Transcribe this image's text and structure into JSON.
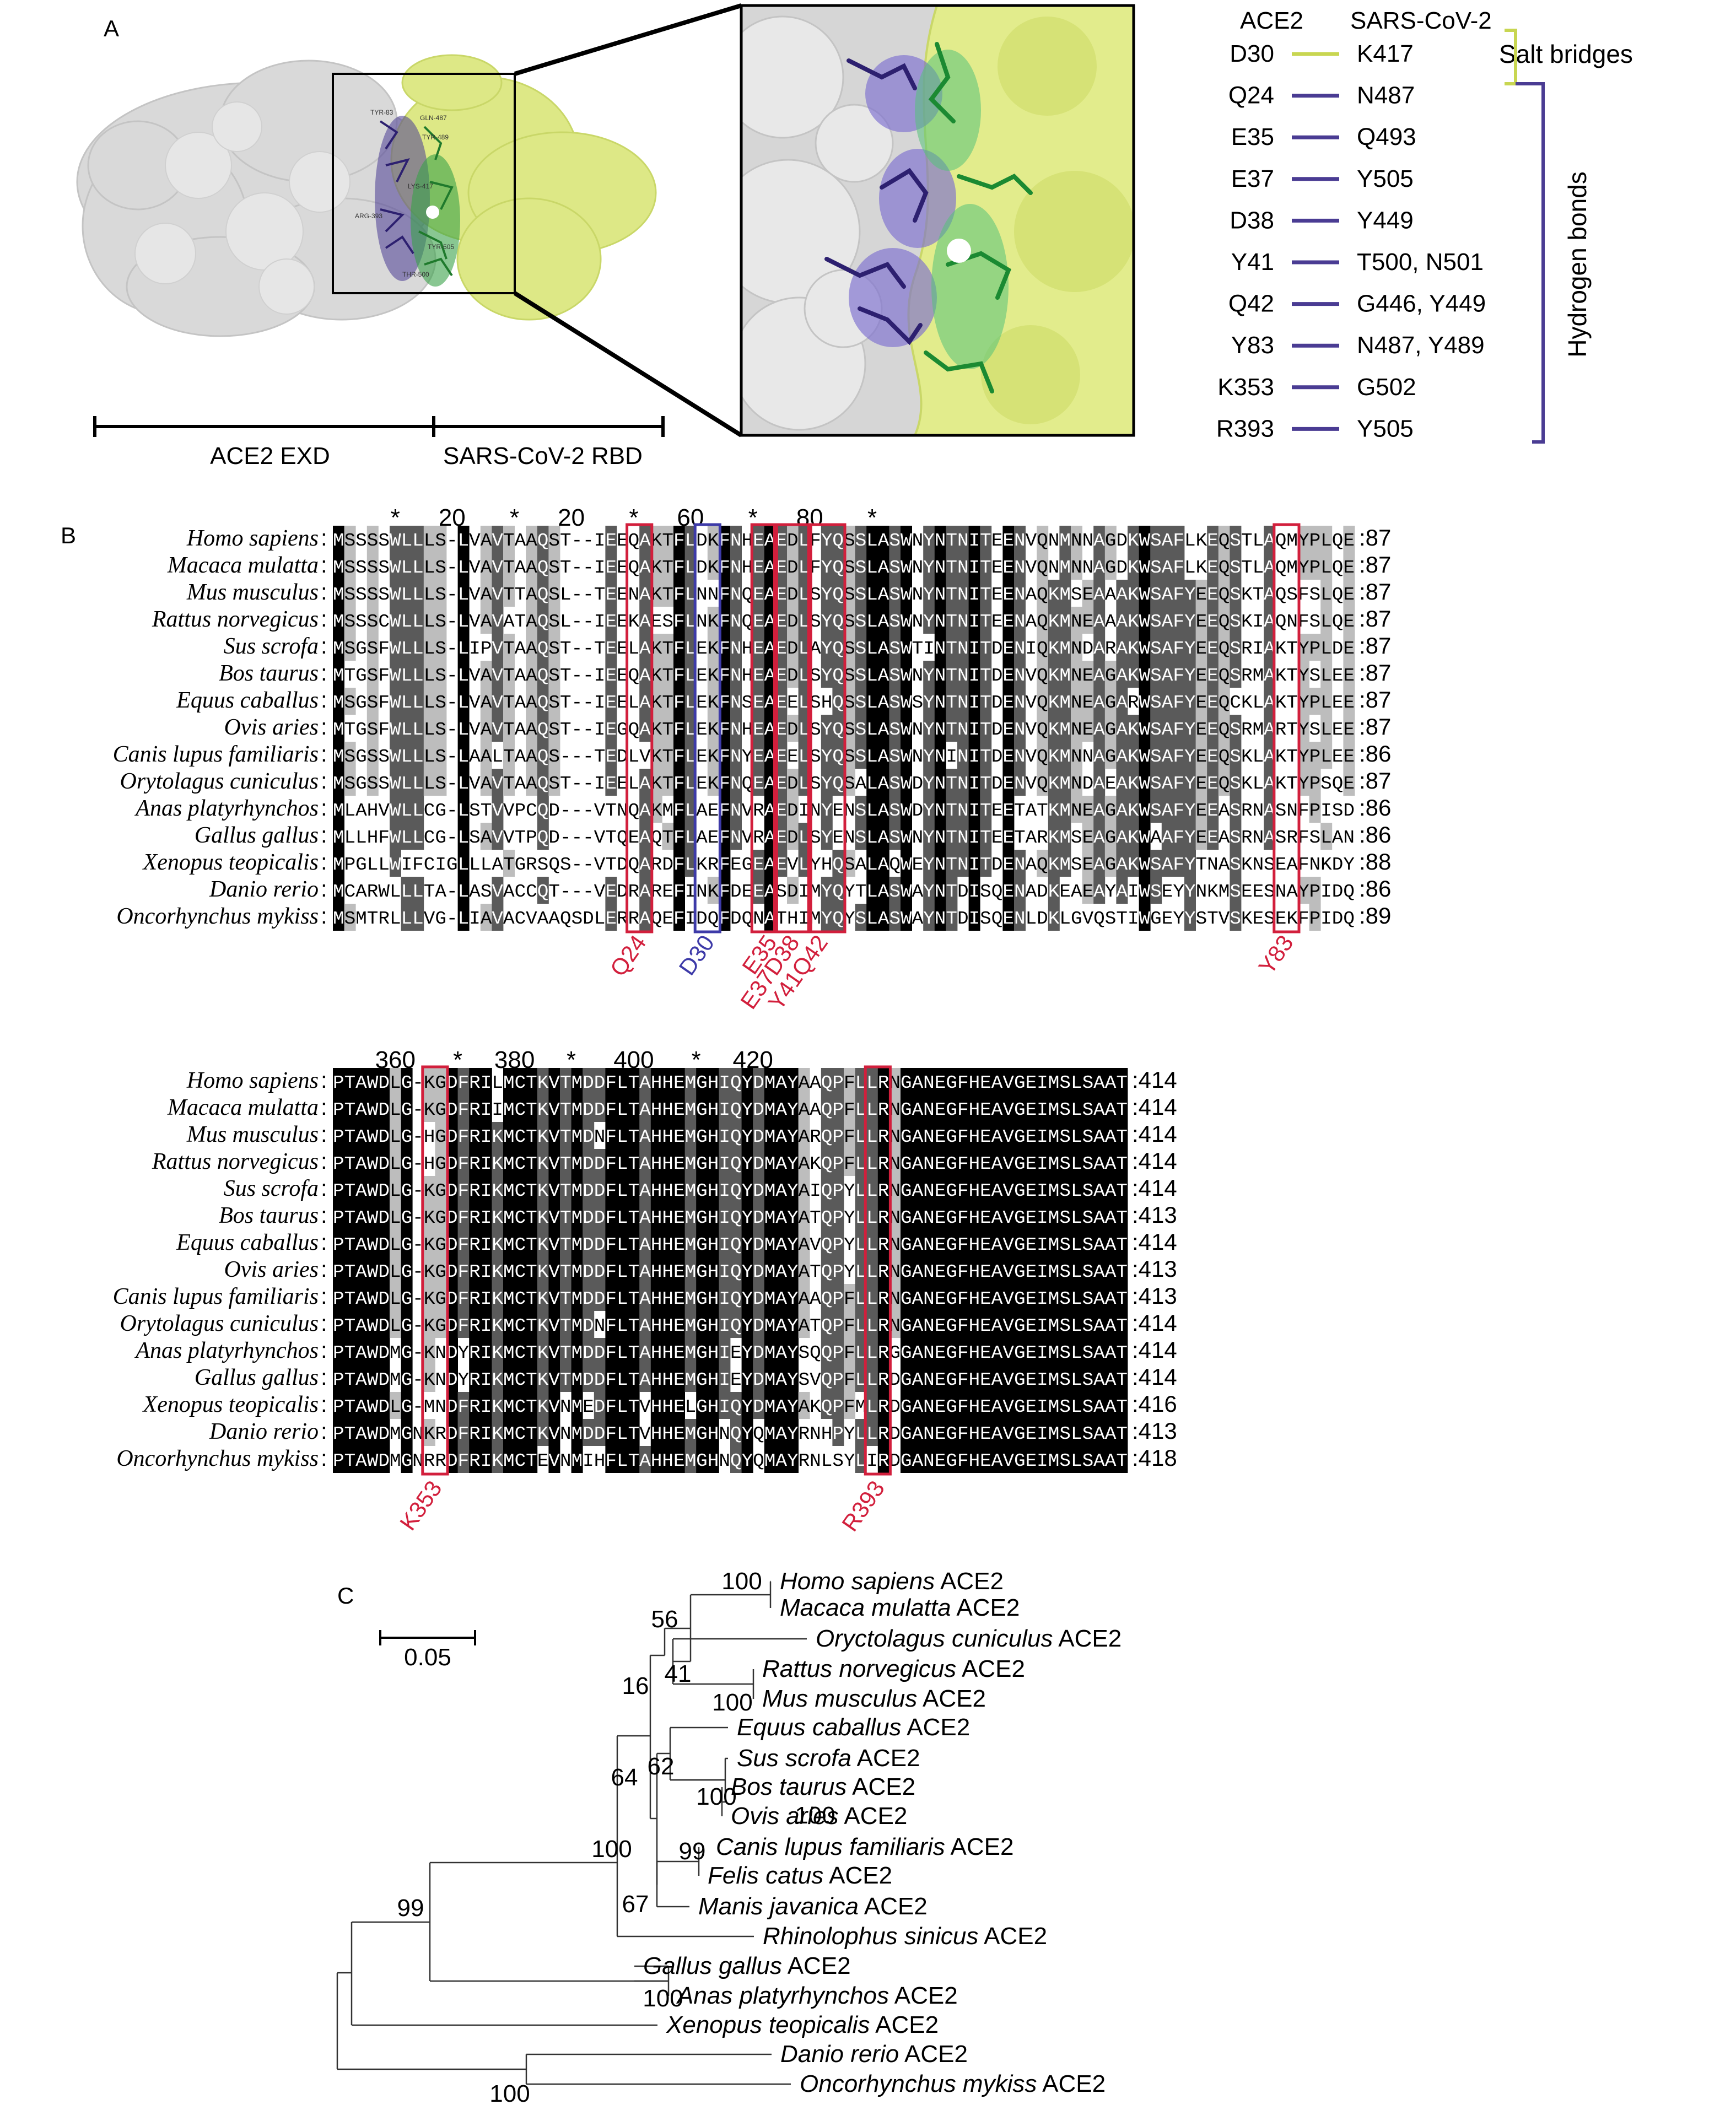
{
  "panels": {
    "a": "A",
    "b": "B",
    "c": "C"
  },
  "panel_a": {
    "scale_left": "ACE2 EXD",
    "scale_right": "SARS-CoV-2 RBD",
    "col_left": "ACE2",
    "col_right": "SARS-CoV-2",
    "salt_label": "Salt bridges",
    "hbond_label": "Hydrogen bonds",
    "salt_color": "#c8d651",
    "hbond_color": "#4a3c93",
    "pairs": [
      {
        "ace2": "D30",
        "cov": "K417",
        "type": "salt"
      },
      {
        "ace2": "Q24",
        "cov": "N487",
        "type": "hbond"
      },
      {
        "ace2": "E35",
        "cov": "Q493",
        "type": "hbond"
      },
      {
        "ace2": "E37",
        "cov": "Y505",
        "type": "hbond"
      },
      {
        "ace2": "D38",
        "cov": "Y449",
        "type": "hbond"
      },
      {
        "ace2": "Y41",
        "cov": "T500, N501",
        "type": "hbond"
      },
      {
        "ace2": "Q42",
        "cov": "G446, Y449",
        "type": "hbond"
      },
      {
        "ace2": "Y83",
        "cov": "N487, Y489",
        "type": "hbond"
      },
      {
        "ace2": "K353",
        "cov": "G502",
        "type": "hbond"
      },
      {
        "ace2": "R393",
        "cov": "Y505",
        "type": "hbond"
      }
    ]
  },
  "alignment1": {
    "ruler": [
      "*",
      "20",
      "*",
      "20",
      "*",
      "60",
      "*",
      "80",
      "*"
    ],
    "rows": [
      {
        "species": "Homo sapiens",
        "seq": "MSSSSWLLLS-LVAVTAAQST--IEEQAKTFLDKFNHEAEDLFYQSSLASWNYNTNITEENVQNMNNAGDKWSAFLKEQSTLAQMYPLQE",
        "end": ":87"
      },
      {
        "species": "Macaca mulatta",
        "seq": "MSSSSWLLLS-LVAVTAAQST--IEEQAKTFLDKFNHEAEDLFYQSSLASWNYNTNITEENVQNMNNAGDKWSAFLKEQSTLAQMYPLQE",
        "end": ":87"
      },
      {
        "species": "Mus musculus",
        "seq": "MSSSSWLLLS-LVAVTTAQSL--TEENAKTFLNNFNQEAEDLSYQSSLASWNYNTNITEENAQKMSEAAAKWSAFYEEQSKTAQSFSLQE",
        "end": ":87"
      },
      {
        "species": "Rattus norvegicus",
        "seq": "MSSSCWLLLS-LVAVATAQSL--IEEKAESFLNKFNQEAEDLSYQSSLASWNYNTNITEENAQKMNEAAAKWSAFYEEQSKIAQNFSLQE",
        "end": ":87"
      },
      {
        "species": "Sus scrofa",
        "seq": "MSGSFWLLLS-LIPVTAAQST--TEELAKTFLEKFNHEAEDLAYQSSLASWTINTNITDENIQKMNDARAKWSAFYEEQSRIAKTYPLDE",
        "end": ":87"
      },
      {
        "species": "Bos taurus",
        "seq": "MTGSFWLLLS-LVAVTAAQST--IEEQAKTFLEKFNHEAEDLSYQSSLASWNYNTNITDENVQKMNEAGAKWSAFYEEQSRMAKTYSLEE",
        "end": ":87"
      },
      {
        "species": "Equus caballus",
        "seq": "MSGSFWLLLS-LVAVTAAQST--IEELAKTFLEKFNSEAEELSHQSSLASWSYNTNITDENVQKMNEAGARWSAFYEEQCKLAKTYPLEE",
        "end": ":87"
      },
      {
        "species": "Ovis aries",
        "seq": "MTGSFWLLLS-LVAVTAAQST--IEGQAKTFLEKFNHEAEDLSYQSSLASWNYNTNITDENVQKMNEAGAKWSAFYEEQSRMARTYSLEE",
        "end": ":87"
      },
      {
        "species": "Canis lupus familiaris",
        "seq": "MSGSSWLLLS-LAALTAAQS---TEDLVKTFLEKFNYEAEELSYQSSLASWNYNINITDENVQKMNNAGAKWSAFYEEQSKLAKTYPLEE",
        "end": ":86"
      },
      {
        "species": "Orytolagus cuniculus",
        "seq": "MSGSSWLLLS-LVAVTAAQST--IEELAKTFLEKFNQEAEDLSYQSALASWDYNTNITDENVQKMNDAEAKWSAFYEEQSKLAKTYPSQE",
        "end": ":87"
      },
      {
        "species": "Anas platyrhynchos",
        "seq": "MLAHVWLLCG-LSTVVPCQD---VTNQAKMFLAEFNVRAEDINYENSLASWDYNTNITEETATKMNEAGAKWSAFYEEASRNASNFPISD",
        "end": ":86"
      },
      {
        "species": "Gallus gallus",
        "seq": "MLLHFWLLCG-LSAVVTPQD---VTQEAQTFLAEFNVRAEDLSYENSLASWNYNTNITEETARKMSEAGAKWAAFYEEASRNASRFSLAN",
        "end": ":86"
      },
      {
        "species": "Xenopus teopicalis",
        "seq": "MPGLLWIFCIGLLLATGRSQS--VTDQARDFLKRFEGEAEVLYHQSALAQWEYNTNITDENAQKMSEAGAKWSAFYTNASKNSEAFNKDY",
        "end": ":88"
      },
      {
        "species": "Danio rerio",
        "seq": "MCARWLLLTA-LASVACCQT---VEDRAREFINKFDEEASDIMYQYTLASWAYNTDISQENADKEAEAYAIWSEYYNKMSEESNAYPIDQ",
        "end": ":86"
      },
      {
        "species": "Oncorhynchus mykiss",
        "seq": "MSMTRLLLVG-LIAVACVAAQSDLERRAQEFIDQFDQNATHIMYQYSLASWAYNTDISQENLDKLGVQSTIWGEYYSTVSKESEKFPIDQ",
        "end": ":89"
      }
    ],
    "labels": [
      {
        "text": "Q24",
        "color": "red"
      },
      {
        "text": "D30",
        "color": "blue"
      },
      {
        "text": "E35",
        "color": "red"
      },
      {
        "text": "E37D38",
        "color": "red"
      },
      {
        "text": "Y41Q42",
        "color": "red"
      },
      {
        "text": "Y83",
        "color": "red"
      }
    ]
  },
  "alignment2": {
    "ruler": [
      "360",
      "*",
      "380",
      "*",
      "400",
      "*",
      "420"
    ],
    "rows": [
      {
        "species": "Homo sapiens",
        "seq": "PTAWDLG-KGDFRILMCTKVTMDDFLTAHHEMGHIQYDMAYAAQPFLLRNGANEGFHEAVGEIMSLSAAT",
        "end": ":414"
      },
      {
        "species": "Macaca mulatta",
        "seq": "PTAWDLG-KGDFRIIMCTKVTMDDFLTAHHEMGHIQYDMAYAAQPFLLRNGANEGFHEAVGEIMSLSAAT",
        "end": ":414"
      },
      {
        "species": "Mus musculus",
        "seq": "PTAWDLG-HGDFRIKMCTKVTMDNFLTAHHEMGHIQYDMAYARQPFLLRNGANEGFHEAVGEIMSLSAAT",
        "end": ":414"
      },
      {
        "species": "Rattus norvegicus",
        "seq": "PTAWDLG-HGDFRIKMCTKVTMDDFLTAHHEMGHIQYDMAYAKQPFLLRNGANEGFHEAVGEIMSLSAAT",
        "end": ":414"
      },
      {
        "species": "Sus scrofa",
        "seq": "PTAWDLG-KGDFRIKMCTKVTMDDFLTAHHEMGHIQYDMAYAIQPYLLRNGANEGFHEAVGEIMSLSAAT",
        "end": ":414"
      },
      {
        "species": "Bos taurus",
        "seq": "PTAWDLG-KGDFRIKMCTKVTMDDFLTAHHEMGHIQYDMAYATQPYLLRNGANEGFHEAVGEIMSLSAAT",
        "end": ":413"
      },
      {
        "species": "Equus caballus",
        "seq": "PTAWDLG-KGDFRIKMCTKVTMDDFLTAHHEMGHIQYDMAYAVQPYLLRNGANEGFHEAVGEIMSLSAAT",
        "end": ":414"
      },
      {
        "species": "Ovis aries",
        "seq": "PTAWDLG-KGDFRIKMCTKVTMDDFLTAHHEMGHIQYDMAYATQPYLLRNGANEGFHEAVGEIMSLSAAT",
        "end": ":413"
      },
      {
        "species": "Canis lupus familiaris",
        "seq": "PTAWDLG-KGDFRIKMCTKVTMDDFLTAHHEMGHIQYDMAYAAQPFLLRNGANEGFHEAVGEIMSLSAAT",
        "end": ":413"
      },
      {
        "species": "Orytolagus cuniculus",
        "seq": "PTAWDLG-KGDFRIKMCTKVTMDNFLTAHHEMGHIQYDMAYATQPFLLRNGANEGFHEAVGEIMSLSAAT",
        "end": ":414"
      },
      {
        "species": "Anas platyrhynchos",
        "seq": "PTAWDMG-KNDYRIKMCTKVTMDDFLTAHHEMGHIEYDMAYSQQPFLLRGGANEGFHEAVGEIMSLSAAT",
        "end": ":414"
      },
      {
        "species": "Gallus gallus",
        "seq": "PTAWDMG-KNDYRIKMCTKVTMDDFLTAHHEMGHIEYDMAYSVQPFLLRDGANEGFHEAVGEIMSLSAAT",
        "end": ":414"
      },
      {
        "species": "Xenopus teopicalis",
        "seq": "PTAWDLG-MNDFRIKMCTKVNMEDFLTVHHELGHIQYDMAYAKQPFMLRDGANEGFHEAVGEIMSLSAAT",
        "end": ":416"
      },
      {
        "species": "Danio rerio",
        "seq": "PTAWDMGNKRDFRIKMCTKVNMDDFLTVHHEMGHNQYQMAYRNHPYLLRDGANEGFHEAVGEIMSLSAAT",
        "end": ":413"
      },
      {
        "species": "Oncorhynchus mykiss",
        "seq": "PTAWDMGNRRDFRIKMCTEVNMIHFLTAHHEMGHNQYQMAYRNLSYLIRDGANEGFHEAVGEIMSLSAAT",
        "end": ":418"
      }
    ],
    "labels": [
      {
        "text": "K353",
        "color": "red"
      },
      {
        "text": "R393",
        "color": "red"
      }
    ]
  },
  "tree": {
    "scale": "0.05",
    "leaves": [
      {
        "italic": "Homo sapiens",
        "suffix": " ACE2"
      },
      {
        "italic": "Macaca mulatta",
        "suffix": " ACE2"
      },
      {
        "italic": "Oryctolagus cuniculus",
        "suffix": " ACE2"
      },
      {
        "italic": "Rattus norvegicus",
        "suffix": " ACE2"
      },
      {
        "italic": "Mus musculus",
        "suffix": " ACE2"
      },
      {
        "italic": "Equus caballus",
        "suffix": " ACE2"
      },
      {
        "italic": "Sus scrofa",
        "suffix": " ACE2"
      },
      {
        "italic": "Bos taurus",
        "suffix": " ACE2"
      },
      {
        "italic": "Ovis aries",
        "suffix": " ACE2"
      },
      {
        "italic": "Canis lupus familiaris",
        "suffix": " ACE2"
      },
      {
        "italic": "Felis catus",
        "suffix": " ACE2"
      },
      {
        "italic": "Manis javanica",
        "suffix": " ACE2"
      },
      {
        "italic": "Rhinolophus sinicus",
        "suffix": " ACE2"
      },
      {
        "italic": "Gallus gallus",
        "suffix": " ACE2"
      },
      {
        "italic": "Anas platyrhynchos",
        "suffix": " ACE2"
      },
      {
        "italic": "Xenopus teopicalis",
        "suffix": " ACE2"
      },
      {
        "italic": "Danio rerio",
        "suffix": " ACE2"
      },
      {
        "italic": "Oncorhynchus mykiss",
        "suffix": " ACE2"
      }
    ],
    "bootstrap": [
      "100",
      "56",
      "41",
      "16",
      "100",
      "62",
      "100",
      "100",
      "64",
      "99",
      "67",
      "100",
      "99",
      "100",
      "100"
    ]
  }
}
